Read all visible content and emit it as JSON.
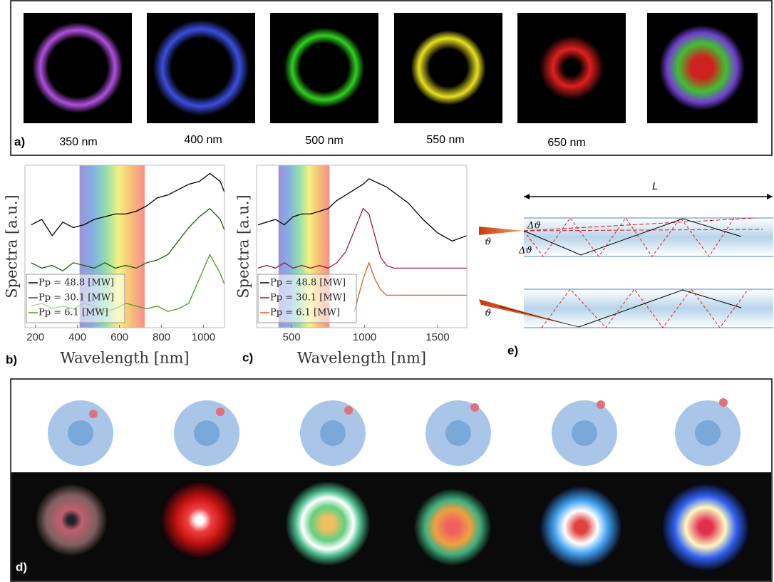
{
  "panel_a": {
    "label": "a)",
    "wavelengths": [
      "350 nm",
      "400 nm",
      "500 nm",
      "550 nm",
      "650 nm"
    ]
  },
  "panel_b": {
    "label": "b)"
  },
  "panel_c": {
    "label": "c)"
  },
  "panel_d": {
    "label": "d)"
  },
  "panel_e": {
    "label": "e)",
    "length": "L",
    "delta_angle": "Δϑ",
    "angle": "ϑ"
  },
  "chart_data": [
    {
      "type": "line",
      "xlabel": "Wavelength [nm]",
      "ylabel": "Spectra [a.u.]",
      "xlim": [
        150,
        1100
      ],
      "xticks": [
        200,
        400,
        600,
        800,
        1000
      ],
      "ylim": [
        0,
        3
      ],
      "band": [
        410,
        720
      ],
      "x": [
        180,
        230,
        280,
        330,
        380,
        430,
        480,
        530,
        580,
        630,
        680,
        730,
        780,
        830,
        880,
        930,
        980,
        1030,
        1080,
        1100
      ],
      "series": [
        {
          "name": "Pp = 48.8 [MW]",
          "color": "#000000",
          "values": [
            1.9,
            2.0,
            1.7,
            1.95,
            1.85,
            1.9,
            2.0,
            2.05,
            2.1,
            2.1,
            2.15,
            2.25,
            2.4,
            2.45,
            2.55,
            2.65,
            2.7,
            2.85,
            2.7,
            2.5
          ]
        },
        {
          "name": "Pp = 30.1 [MW]",
          "color": "#1f5c0a",
          "values": [
            1.2,
            1.1,
            1.15,
            1.05,
            1.2,
            1.15,
            1.1,
            1.2,
            1.1,
            1.15,
            1.1,
            1.2,
            1.25,
            1.35,
            1.6,
            1.85,
            2.05,
            2.2,
            2.0,
            1.8
          ]
        },
        {
          "name": "Pp = 6.1 [MW]",
          "color": "#4a9a1f",
          "values": [
            0.4,
            0.45,
            0.35,
            0.4,
            0.35,
            0.45,
            0.4,
            0.3,
            0.35,
            0.45,
            0.4,
            0.35,
            0.4,
            0.3,
            0.35,
            0.45,
            0.9,
            1.35,
            1.0,
            0.8
          ]
        }
      ]
    },
    {
      "type": "line",
      "xlabel": "Wavelength [nm]",
      "ylabel": "Spectra [a.u.]",
      "xlim": [
        260,
        1700
      ],
      "xticks": [
        500,
        1000,
        1500
      ],
      "ylim": [
        0,
        3
      ],
      "band": [
        410,
        760
      ],
      "x": [
        270,
        330,
        390,
        450,
        510,
        570,
        630,
        690,
        750,
        810,
        870,
        930,
        990,
        1030,
        1070,
        1110,
        1150,
        1200,
        1300,
        1400,
        1500,
        1600,
        1700
      ],
      "series": [
        {
          "name": "Pp = 48.8 [MW]",
          "color": "#000000",
          "values": [
            1.9,
            1.95,
            2.0,
            1.9,
            2.05,
            2.1,
            2.1,
            2.15,
            2.2,
            2.35,
            2.45,
            2.55,
            2.65,
            2.75,
            2.7,
            2.65,
            2.6,
            2.5,
            2.3,
            2.0,
            1.75,
            1.6,
            1.7
          ]
        },
        {
          "name": "Pp = 30.1 [MW]",
          "color": "#a0163a",
          "values": [
            1.1,
            1.15,
            1.1,
            1.2,
            1.1,
            1.15,
            1.1,
            1.15,
            1.1,
            1.2,
            1.4,
            1.8,
            2.2,
            2.1,
            1.7,
            1.3,
            1.15,
            1.1,
            1.1,
            1.1,
            1.1,
            1.1,
            1.1
          ]
        },
        {
          "name": "Pp = 6.1 [MW]",
          "color": "#d9601a",
          "values": [
            null,
            null,
            null,
            null,
            null,
            null,
            null,
            null,
            null,
            null,
            null,
            0.3,
            0.9,
            1.2,
            0.9,
            0.7,
            0.6,
            0.6,
            0.6,
            0.6,
            0.6,
            0.6,
            0.6
          ]
        }
      ]
    }
  ]
}
